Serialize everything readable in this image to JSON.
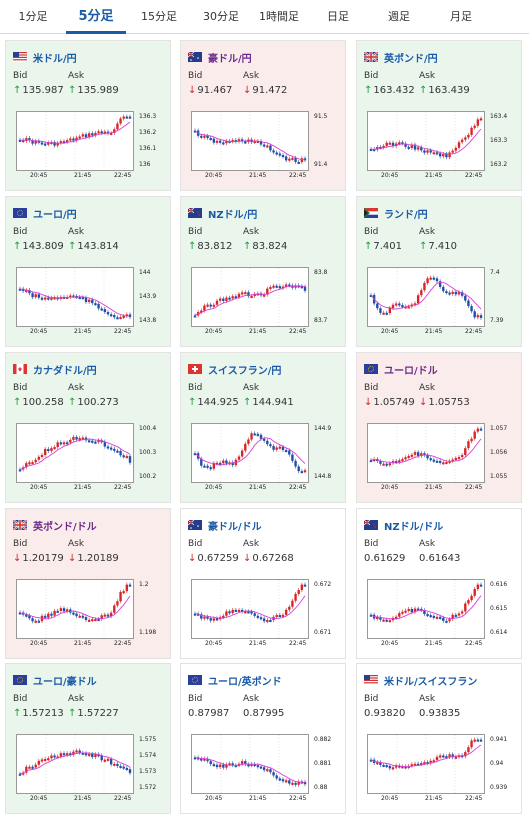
{
  "tabs": [
    {
      "label": "1分足",
      "active": false
    },
    {
      "label": "5分足",
      "active": true
    },
    {
      "label": "15分足",
      "active": false
    },
    {
      "label": "30分足",
      "active": false
    },
    {
      "label": "1時間足",
      "active": false
    },
    {
      "label": "日足",
      "active": false
    },
    {
      "label": "週足",
      "active": false
    },
    {
      "label": "月足",
      "active": false
    }
  ],
  "labels": {
    "bid": "Bid",
    "ask": "Ask"
  },
  "colors": {
    "up_bg": "#eaf5ec",
    "down_bg": "#fbecec",
    "up_arrow": "#1f9a3a",
    "down_arrow": "#d32626",
    "candle_up": "#d62728",
    "candle_down": "#1f4fa8",
    "ma_line": "#d63fd6",
    "link_blue": "#1a5aa6"
  },
  "cards": [
    {
      "pair": "米ドル/円",
      "flag": "us-flag-icon",
      "trend": "up",
      "bid": "135.987",
      "ask": "135.989",
      "bid_dir": "up",
      "ask_dir": "up",
      "yticks": [
        "136.3",
        "136.2",
        "136.1",
        "136"
      ],
      "xticks": [
        "20:45",
        "21:45",
        "22:45"
      ],
      "shape": "dropend"
    },
    {
      "pair": "豪ドル/円",
      "flag": "au-flag-icon",
      "trend": "down",
      "bid": "91.467",
      "ask": "91.472",
      "bid_dir": "down",
      "ask_dir": "down",
      "yticks": [
        "91.5",
        "91.4"
      ],
      "xticks": [
        "20:45",
        "21:45",
        "22:45"
      ],
      "shape": "down"
    },
    {
      "pair": "英ポンド/円",
      "flag": "gb-flag-icon",
      "trend": "up",
      "bid": "163.432",
      "ask": "163.439",
      "bid_dir": "up",
      "ask_dir": "up",
      "yticks": [
        "163.4",
        "163.3",
        "163.2"
      ],
      "xticks": [
        "20:45",
        "21:45",
        "22:45"
      ],
      "shape": "upend"
    },
    {
      "pair": "ユーロ/円",
      "flag": "eu-flag-icon",
      "trend": "up",
      "bid": "143.809",
      "ask": "143.814",
      "bid_dir": "up",
      "ask_dir": "up",
      "yticks": [
        "144",
        "143.9",
        "143.8"
      ],
      "xticks": [
        "20:45",
        "21:45",
        "22:45"
      ],
      "shape": "down"
    },
    {
      "pair": "NZドル/円",
      "flag": "nz-flag-icon",
      "trend": "up",
      "bid": "83.812",
      "ask": "83.824",
      "bid_dir": "up",
      "ask_dir": "up",
      "yticks": [
        "83.8",
        "83.7"
      ],
      "xticks": [
        "20:45",
        "21:45",
        "22:45"
      ],
      "shape": "vshape"
    },
    {
      "pair": "ランド/円",
      "flag": "za-flag-icon",
      "trend": "up",
      "bid": "7.401",
      "ask": "7.410",
      "bid_dir": "up",
      "ask_dir": "up",
      "yticks": [
        "7.4",
        "7.39"
      ],
      "xticks": [
        "20:45",
        "21:45",
        "22:45"
      ],
      "shape": "wave"
    },
    {
      "pair": "カナダドル/円",
      "flag": "ca-flag-icon",
      "trend": "up",
      "bid": "100.258",
      "ask": "100.273",
      "bid_dir": "up",
      "ask_dir": "up",
      "yticks": [
        "100.4",
        "100.3",
        "100.2"
      ],
      "xticks": [
        "20:45",
        "21:45",
        "22:45"
      ],
      "shape": "rise"
    },
    {
      "pair": "スイスフラン/円",
      "flag": "ch-flag-icon",
      "trend": "up",
      "bid": "144.925",
      "ask": "144.941",
      "bid_dir": "up",
      "ask_dir": "up",
      "yticks": [
        "144.9",
        "144.8"
      ],
      "xticks": [
        "20:45",
        "21:45",
        "22:45"
      ],
      "shape": "wave"
    },
    {
      "pair": "ユーロ/ドル",
      "flag": "eu-us-flag-icon",
      "trend": "down",
      "bid": "1.05749",
      "ask": "1.05753",
      "bid_dir": "down",
      "ask_dir": "down",
      "yticks": [
        "1.057",
        "1.056",
        "1.055"
      ],
      "xticks": [
        "20:45",
        "21:45",
        "22:45"
      ],
      "shape": "spike"
    },
    {
      "pair": "英ポンド/ドル",
      "flag": "gb-us-flag-icon",
      "trend": "down",
      "bid": "1.20179",
      "ask": "1.20189",
      "bid_dir": "down",
      "ask_dir": "down",
      "yticks": [
        "1.2",
        "1.198"
      ],
      "xticks": [
        "20:45",
        "21:45",
        "22:45"
      ],
      "shape": "spike"
    },
    {
      "pair": "豪ドル/ドル",
      "flag": "au-us-flag-icon",
      "trend": "flat",
      "bid": "0.67259",
      "ask": "0.67268",
      "bid_dir": "down",
      "ask_dir": "down",
      "yticks": [
        "0.672",
        "0.671"
      ],
      "xticks": [
        "20:45",
        "21:45",
        "22:45"
      ],
      "shape": "spike"
    },
    {
      "pair": "NZドル/ドル",
      "flag": "nz-us-flag-icon",
      "trend": "flat",
      "bid": "0.61629",
      "ask": "0.61643",
      "bid_dir": "none",
      "ask_dir": "none",
      "yticks": [
        "0.616",
        "0.615",
        "0.614"
      ],
      "xticks": [
        "20:45",
        "21:45",
        "22:45"
      ],
      "shape": "spike"
    },
    {
      "pair": "ユーロ/豪ドル",
      "flag": "eu-au-flag-icon",
      "trend": "up",
      "bid": "1.57213",
      "ask": "1.57227",
      "bid_dir": "up",
      "ask_dir": "up",
      "yticks": [
        "1.575",
        "1.574",
        "1.573",
        "1.572"
      ],
      "xticks": [
        "20:45",
        "21:45",
        "22:45"
      ],
      "shape": "hump"
    },
    {
      "pair": "ユーロ/英ポンド",
      "flag": "eu-gb-flag-icon",
      "trend": "flat",
      "bid": "0.87987",
      "ask": "0.87995",
      "bid_dir": "none",
      "ask_dir": "none",
      "yticks": [
        "0.882",
        "0.881",
        "0.88"
      ],
      "xticks": [
        "20:45",
        "21:45",
        "22:45"
      ],
      "shape": "down"
    },
    {
      "pair": "米ドル/スイスフラン",
      "flag": "us-ch-flag-icon",
      "trend": "flat",
      "bid": "0.93820",
      "ask": "0.93835",
      "bid_dir": "none",
      "ask_dir": "none",
      "yticks": [
        "0.941",
        "0.94",
        "0.939"
      ],
      "xticks": [
        "20:45",
        "21:45",
        "22:45"
      ],
      "shape": "dropend"
    }
  ]
}
